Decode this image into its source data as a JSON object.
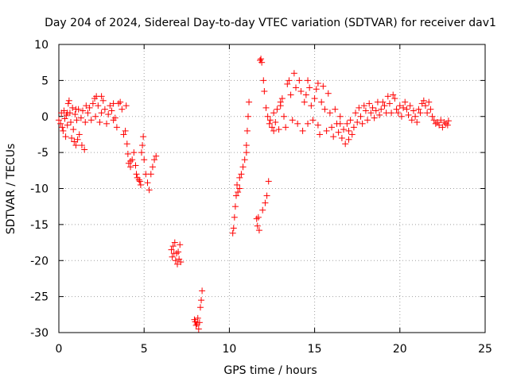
{
  "chart_data": {
    "type": "scatter",
    "title": "Day 204 of 2024, Sidereal Day-to-day VTEC variation (SDTVAR) for receiver dav1",
    "xlabel": "GPS time / hours",
    "ylabel": "SDTVAR / TECUs",
    "xlim": [
      0,
      25
    ],
    "ylim": [
      -30,
      10
    ],
    "xticks": [
      0,
      5,
      10,
      15,
      20,
      25
    ],
    "yticks": [
      10,
      5,
      0,
      -5,
      -10,
      -15,
      -20,
      -25,
      -30
    ],
    "grid": true,
    "marker": "+",
    "color": "#ff0000",
    "series": [
      {
        "name": "SDTVAR",
        "points": [
          [
            0.0,
            -0.5
          ],
          [
            0.1,
            -1.0
          ],
          [
            0.15,
            0.5
          ],
          [
            0.2,
            -1.5
          ],
          [
            0.25,
            -2.0
          ],
          [
            0.3,
            0.8
          ],
          [
            0.35,
            -0.3
          ],
          [
            0.4,
            -2.8
          ],
          [
            0.45,
            0.2
          ],
          [
            0.5,
            -1.2
          ],
          [
            0.55,
            1.8
          ],
          [
            0.6,
            2.2
          ],
          [
            0.65,
            0.5
          ],
          [
            0.7,
            -0.8
          ],
          [
            0.75,
            -3.0
          ],
          [
            0.8,
            1.2
          ],
          [
            0.85,
            -1.8
          ],
          [
            0.9,
            -3.5
          ],
          [
            0.95,
            0.3
          ],
          [
            1.0,
            -4.0
          ],
          [
            1.05,
            -0.5
          ],
          [
            1.1,
            -3.2
          ],
          [
            1.15,
            1.0
          ],
          [
            1.2,
            -2.5
          ],
          [
            1.3,
            -0.2
          ],
          [
            1.35,
            -4.0
          ],
          [
            1.4,
            0.8
          ],
          [
            1.5,
            -4.6
          ],
          [
            1.55,
            -0.8
          ],
          [
            1.6,
            1.5
          ],
          [
            1.7,
            0.5
          ],
          [
            1.8,
            1.2
          ],
          [
            1.9,
            -0.5
          ],
          [
            2.0,
            1.8
          ],
          [
            2.1,
            2.5
          ],
          [
            2.15,
            0.0
          ],
          [
            2.2,
            2.8
          ],
          [
            2.3,
            1.5
          ],
          [
            2.4,
            -0.8
          ],
          [
            2.5,
            0.5
          ],
          [
            2.6,
            2.2
          ],
          [
            2.7,
            1.0
          ],
          [
            2.8,
            -1.0
          ],
          [
            2.9,
            0.3
          ],
          [
            3.0,
            1.5
          ],
          [
            3.1,
            0.8
          ],
          [
            3.2,
            -0.5
          ],
          [
            3.3,
            -0.2
          ],
          [
            3.4,
            -1.5
          ],
          [
            3.5,
            1.8
          ],
          [
            3.6,
            2.0
          ],
          [
            3.7,
            1.0
          ],
          [
            3.8,
            -2.5
          ],
          [
            3.9,
            -2.0
          ],
          [
            3.95,
            1.5
          ],
          [
            4.0,
            -3.8
          ],
          [
            4.05,
            -5.2
          ],
          [
            4.1,
            -6.5
          ],
          [
            4.2,
            -7.0
          ],
          [
            4.3,
            -6.0
          ],
          [
            4.4,
            -5.0
          ],
          [
            4.5,
            -6.8
          ],
          [
            4.55,
            -8.0
          ],
          [
            4.6,
            -8.5
          ],
          [
            4.7,
            -8.8
          ],
          [
            4.75,
            -9.0
          ],
          [
            4.8,
            -9.5
          ],
          [
            4.85,
            -5.0
          ],
          [
            4.9,
            -4.0
          ],
          [
            4.95,
            -2.8
          ],
          [
            5.0,
            -6.0
          ],
          [
            5.1,
            -8.0
          ],
          [
            5.2,
            -9.2
          ],
          [
            5.3,
            -10.2
          ],
          [
            5.4,
            -8.0
          ],
          [
            5.5,
            -7.0
          ],
          [
            5.6,
            -6.0
          ],
          [
            5.7,
            -5.5
          ],
          [
            6.6,
            -18.5
          ],
          [
            6.65,
            -19.5
          ],
          [
            6.7,
            -18.0
          ],
          [
            6.75,
            -19.0
          ],
          [
            6.8,
            -17.5
          ],
          [
            6.85,
            -20.0
          ],
          [
            6.9,
            -19.0
          ],
          [
            6.95,
            -20.5
          ],
          [
            7.0,
            -18.8
          ],
          [
            7.05,
            -19.8
          ],
          [
            7.1,
            -17.8
          ],
          [
            7.15,
            -20.2
          ],
          [
            7.95,
            -28.2
          ],
          [
            8.0,
            -28.5
          ],
          [
            8.05,
            -29.0
          ],
          [
            8.1,
            -28.8
          ],
          [
            8.15,
            -28.0
          ],
          [
            8.2,
            -29.5
          ],
          [
            8.25,
            -28.6
          ],
          [
            8.3,
            -26.5
          ],
          [
            8.35,
            -25.5
          ],
          [
            8.4,
            -24.2
          ],
          [
            10.2,
            -16.2
          ],
          [
            10.25,
            -15.5
          ],
          [
            10.3,
            -14.0
          ],
          [
            10.35,
            -12.5
          ],
          [
            10.4,
            -11.0
          ],
          [
            10.45,
            -9.5
          ],
          [
            10.5,
            -10.5
          ],
          [
            10.6,
            -8.5
          ],
          [
            10.7,
            -8.0
          ],
          [
            10.8,
            -7.0
          ],
          [
            10.9,
            -6.0
          ],
          [
            11.0,
            -4.0
          ],
          [
            11.05,
            -2.0
          ],
          [
            11.1,
            0.0
          ],
          [
            11.15,
            2.0
          ],
          [
            11.6,
            -14.2
          ],
          [
            11.65,
            -15.2
          ],
          [
            11.7,
            -14.0
          ],
          [
            11.75,
            -15.8
          ],
          [
            11.8,
            7.8
          ],
          [
            11.85,
            8.0
          ],
          [
            11.9,
            7.5
          ],
          [
            11.95,
            -13.0
          ],
          [
            12.0,
            5.0
          ],
          [
            12.05,
            3.5
          ],
          [
            12.1,
            -12.0
          ],
          [
            12.15,
            1.2
          ],
          [
            12.2,
            -11.0
          ],
          [
            12.25,
            0.0
          ],
          [
            12.3,
            -9.0
          ],
          [
            12.35,
            -1.0
          ],
          [
            12.4,
            -0.5
          ],
          [
            12.5,
            -1.5
          ],
          [
            12.6,
            -2.0
          ],
          [
            12.7,
            -0.8
          ],
          [
            12.8,
            1.0
          ],
          [
            12.9,
            -1.8
          ],
          [
            13.0,
            1.5
          ],
          [
            13.1,
            2.5
          ],
          [
            13.2,
            0.0
          ],
          [
            13.3,
            -1.5
          ],
          [
            13.4,
            4.5
          ],
          [
            13.5,
            5.0
          ],
          [
            13.6,
            3.0
          ],
          [
            13.7,
            -0.5
          ],
          [
            13.8,
            6.0
          ],
          [
            13.9,
            4.0
          ],
          [
            14.0,
            -1.0
          ],
          [
            14.1,
            5.0
          ],
          [
            14.2,
            3.5
          ],
          [
            14.3,
            -2.0
          ],
          [
            14.4,
            2.0
          ],
          [
            14.5,
            3.0
          ],
          [
            14.6,
            -1.0
          ],
          [
            14.7,
            4.0
          ],
          [
            14.8,
            1.5
          ],
          [
            14.9,
            -0.5
          ],
          [
            15.0,
            2.5
          ],
          [
            15.1,
            3.8
          ],
          [
            15.2,
            -1.2
          ],
          [
            15.3,
            -2.5
          ],
          [
            15.4,
            2.0
          ],
          [
            15.5,
            4.2
          ],
          [
            15.6,
            1.0
          ],
          [
            15.7,
            -2.0
          ],
          [
            15.8,
            3.2
          ],
          [
            15.9,
            0.5
          ],
          [
            16.0,
            -1.5
          ],
          [
            16.1,
            -2.8
          ],
          [
            16.2,
            1.0
          ],
          [
            16.3,
            -1.0
          ],
          [
            16.4,
            -2.2
          ],
          [
            16.5,
            0.0
          ],
          [
            16.6,
            -3.0
          ],
          [
            16.7,
            -1.8
          ],
          [
            16.8,
            -3.8
          ],
          [
            16.9,
            -1.0
          ],
          [
            17.0,
            -3.2
          ],
          [
            17.1,
            -0.5
          ],
          [
            17.2,
            -2.5
          ],
          [
            17.3,
            -1.5
          ],
          [
            17.4,
            0.5
          ],
          [
            17.5,
            -0.8
          ],
          [
            17.6,
            1.2
          ],
          [
            17.7,
            0.0
          ],
          [
            17.8,
            -1.0
          ],
          [
            17.9,
            1.5
          ],
          [
            18.0,
            0.8
          ],
          [
            18.1,
            -0.5
          ],
          [
            18.2,
            1.8
          ],
          [
            18.3,
            0.5
          ],
          [
            18.4,
            1.2
          ],
          [
            18.5,
            -0.2
          ],
          [
            18.6,
            0.8
          ],
          [
            18.7,
            2.0
          ],
          [
            18.8,
            0.2
          ],
          [
            18.9,
            1.0
          ],
          [
            19.0,
            2.0
          ],
          [
            19.1,
            1.5
          ],
          [
            19.2,
            0.5
          ],
          [
            19.3,
            2.8
          ],
          [
            19.4,
            1.8
          ],
          [
            19.5,
            0.5
          ],
          [
            19.6,
            3.0
          ],
          [
            19.7,
            2.5
          ],
          [
            19.8,
            1.0
          ],
          [
            19.9,
            0.5
          ],
          [
            20.0,
            1.5
          ],
          [
            20.1,
            0.0
          ],
          [
            20.2,
            1.2
          ],
          [
            20.3,
            2.0
          ],
          [
            20.4,
            1.0
          ],
          [
            20.5,
            0.2
          ],
          [
            20.6,
            1.5
          ],
          [
            20.7,
            -0.5
          ],
          [
            20.8,
            0.8
          ],
          [
            20.9,
            0.0
          ],
          [
            21.0,
            -0.8
          ],
          [
            21.1,
            1.0
          ],
          [
            21.2,
            0.5
          ],
          [
            21.3,
            1.8
          ],
          [
            21.4,
            2.2
          ],
          [
            21.5,
            1.5
          ],
          [
            21.6,
            0.5
          ],
          [
            21.7,
            2.0
          ],
          [
            21.8,
            1.0
          ],
          [
            21.9,
            0.0
          ],
          [
            22.0,
            -0.5
          ],
          [
            22.1,
            -1.0
          ],
          [
            22.2,
            -0.8
          ],
          [
            22.3,
            -1.2
          ],
          [
            22.4,
            -0.5
          ],
          [
            22.5,
            -1.5
          ],
          [
            22.6,
            -0.8
          ],
          [
            22.7,
            -1.0
          ],
          [
            22.8,
            -1.2
          ],
          [
            22.85,
            -0.6
          ],
          [
            14.6,
            5.0
          ],
          [
            15.2,
            4.6
          ],
          [
            13.0,
            2.0
          ],
          [
            12.6,
            0.5
          ],
          [
            16.5,
            -1.0
          ],
          [
            17.0,
            -2.0
          ],
          [
            0.5,
            0.5
          ],
          [
            1.0,
            1.0
          ],
          [
            2.5,
            2.8
          ],
          [
            3.2,
            1.8
          ],
          [
            4.2,
            -6.2
          ],
          [
            11.0,
            -5.0
          ],
          [
            10.6,
            -10.0
          ]
        ]
      }
    ]
  }
}
